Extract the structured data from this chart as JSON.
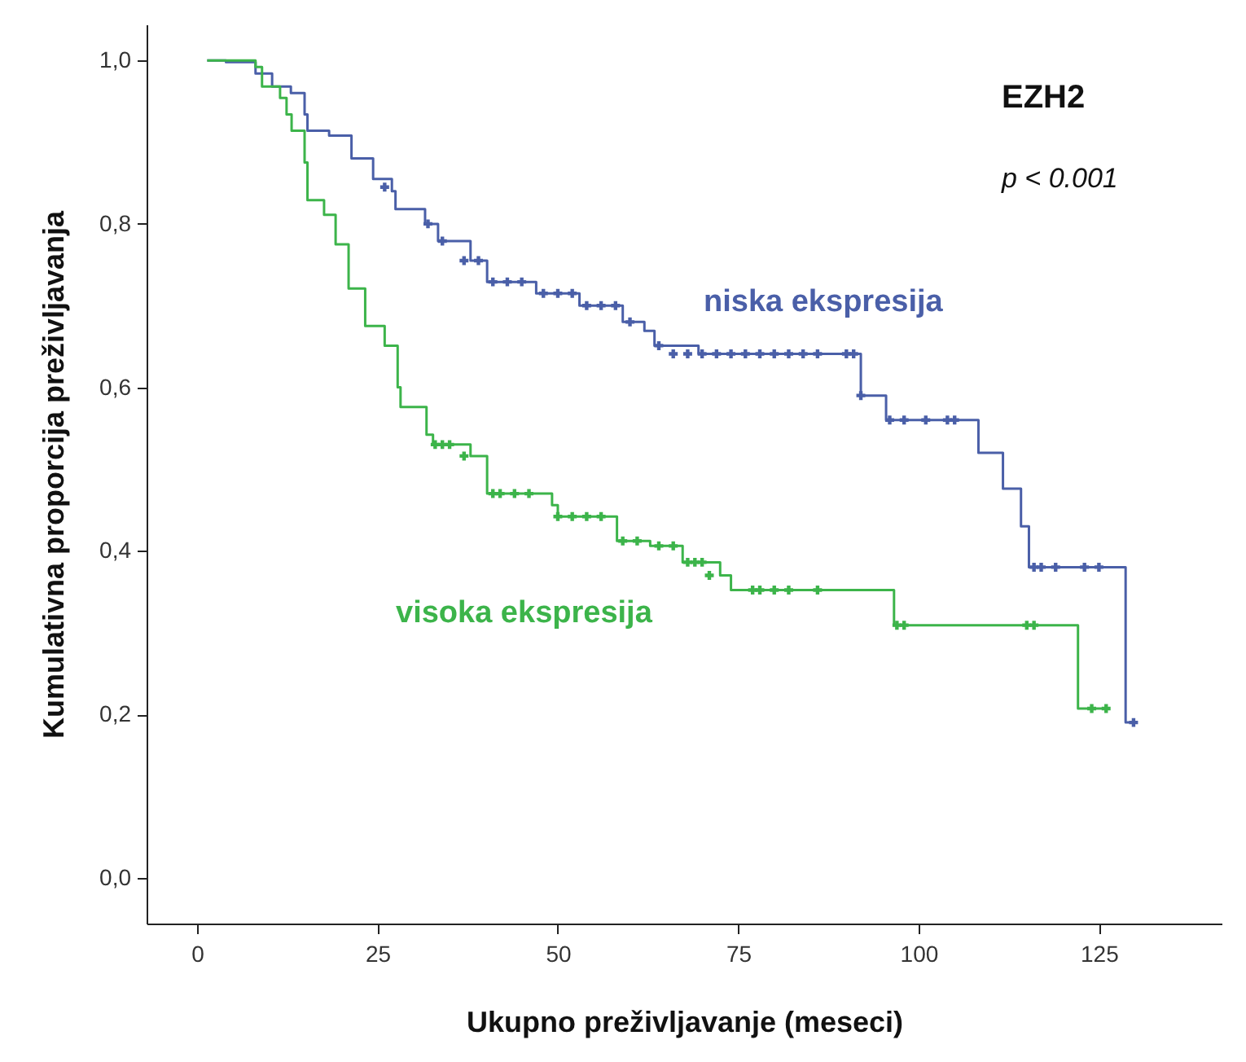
{
  "chart_data": {
    "type": "step",
    "xlabel": "Ukupno preživljavanje (meseci)",
    "ylabel": "Kumulativna proporcija preživljavanja",
    "annotations": [
      "EZH2",
      "p < 0.001"
    ],
    "xlim": [
      -7,
      142
    ],
    "ylim": [
      -0.056,
      1.044
    ],
    "xticks": [
      0,
      25,
      50,
      75,
      100,
      125
    ],
    "yticks": [
      {
        "value": 0,
        "label": "0,0"
      },
      {
        "value": 0.2,
        "label": "0,2"
      },
      {
        "value": 0.4,
        "label": "0,4"
      },
      {
        "value": 0.6,
        "label": "0,6"
      },
      {
        "value": 0.8,
        "label": "0,8"
      },
      {
        "value": 1,
        "label": "1,0"
      }
    ],
    "grid": false,
    "series": [
      {
        "name": "niska ekspresija",
        "color": "#4a5fa8",
        "x": [
          1.4,
          4,
          8.1,
          10.4,
          13,
          14.9,
          15.3,
          18.3,
          21.4,
          24.4,
          27,
          27.5,
          31.6,
          33.4,
          37.9,
          40.2,
          47,
          53,
          59,
          62,
          63.4,
          69.5,
          92,
          95.5,
          108.3,
          111.7,
          114.2,
          115.3,
          128.7,
          129.8
        ],
        "values": [
          1,
          0.998,
          0.984,
          0.968,
          0.96,
          0.934,
          0.914,
          0.908,
          0.88,
          0.855,
          0.84,
          0.818,
          0.8,
          0.779,
          0.755,
          0.729,
          0.715,
          0.7,
          0.68,
          0.669,
          0.651,
          0.641,
          0.59,
          0.56,
          0.52,
          0.476,
          0.43,
          0.38,
          0.19,
          0.19
        ]
      },
      {
        "name": "visoka ekspresija",
        "color": "#3cb44a",
        "x": [
          1.4,
          8.1,
          9,
          11.5,
          12.4,
          13.1,
          14.9,
          15.3,
          17.6,
          19.2,
          21,
          23.3,
          26,
          27.8,
          28.2,
          31.8,
          32.7,
          37.9,
          40.2,
          49.2,
          50,
          58.2,
          62.8,
          67.3,
          72.5,
          74,
          96.6,
          122.1,
          126
        ],
        "values": [
          1,
          0.992,
          0.968,
          0.954,
          0.934,
          0.914,
          0.875,
          0.829,
          0.811,
          0.775,
          0.721,
          0.675,
          0.651,
          0.6,
          0.576,
          0.542,
          0.53,
          0.516,
          0.47,
          0.456,
          0.442,
          0.412,
          0.406,
          0.386,
          0.37,
          0.352,
          0.309,
          0.207,
          0.207
        ]
      },
      {
        "color": "#4a5fa8",
        "type": "scatter",
        "marker": "cross",
        "x": [
          26,
          32,
          34,
          37,
          39,
          41,
          43,
          45,
          48,
          50,
          52,
          54,
          56,
          58,
          60,
          64,
          66,
          68,
          70,
          72,
          74,
          76,
          78,
          80,
          82,
          84,
          86,
          90,
          91,
          92,
          96,
          98,
          101,
          104,
          105,
          116,
          117,
          119,
          123,
          125,
          129.8
        ],
        "values": [
          0.845,
          0.8,
          0.779,
          0.755,
          0.755,
          0.729,
          0.729,
          0.729,
          0.715,
          0.715,
          0.715,
          0.7,
          0.7,
          0.7,
          0.68,
          0.651,
          0.641,
          0.641,
          0.641,
          0.641,
          0.641,
          0.641,
          0.641,
          0.641,
          0.641,
          0.641,
          0.641,
          0.641,
          0.641,
          0.59,
          0.56,
          0.56,
          0.56,
          0.56,
          0.56,
          0.38,
          0.38,
          0.38,
          0.38,
          0.38,
          0.19
        ]
      },
      {
        "color": "#3cb44a",
        "type": "scatter",
        "marker": "cross",
        "x": [
          33,
          34,
          35,
          37,
          41,
          42,
          44,
          46,
          50,
          52,
          54,
          56,
          59,
          61,
          64,
          66,
          68,
          69,
          70,
          71,
          77,
          78,
          80,
          82,
          86,
          97,
          98,
          115,
          116,
          124,
          126
        ],
        "values": [
          0.53,
          0.53,
          0.53,
          0.516,
          0.47,
          0.47,
          0.47,
          0.47,
          0.442,
          0.442,
          0.442,
          0.442,
          0.412,
          0.412,
          0.406,
          0.406,
          0.386,
          0.386,
          0.386,
          0.37,
          0.352,
          0.352,
          0.352,
          0.352,
          0.352,
          0.309,
          0.309,
          0.309,
          0.309,
          0.207,
          0.207
        ]
      }
    ]
  }
}
